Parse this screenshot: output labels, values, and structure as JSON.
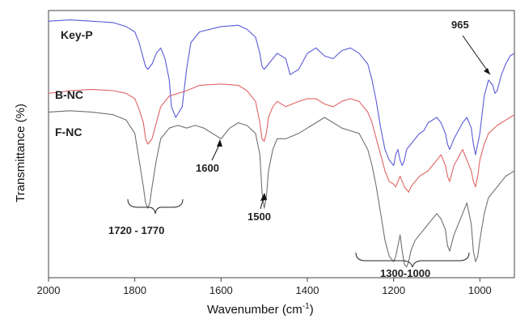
{
  "chart_data": {
    "type": "line",
    "xlabel": "Wavenumber (cm",
    "xlabel_sup": "-1",
    "xlabel_close": ")",
    "ylabel": "Transmittance (%)",
    "xlim": [
      2000,
      920
    ],
    "ylim": [
      0,
      100
    ],
    "xticks": [
      2000,
      1800,
      1600,
      1400,
      1200,
      1000
    ],
    "grid": false,
    "series": [
      {
        "name": "Key-P",
        "color": "#5a5ad8",
        "x": [
          2000,
          1950,
          1900,
          1850,
          1820,
          1800,
          1790,
          1780,
          1775,
          1770,
          1760,
          1750,
          1740,
          1730,
          1720,
          1715,
          1705,
          1690,
          1680,
          1670,
          1650,
          1600,
          1560,
          1540,
          1520,
          1510,
          1505,
          1500,
          1490,
          1470,
          1450,
          1440,
          1420,
          1400,
          1380,
          1360,
          1340,
          1320,
          1300,
          1280,
          1260,
          1250,
          1240,
          1230,
          1220,
          1210,
          1200,
          1195,
          1190,
          1185,
          1180,
          1175,
          1170,
          1160,
          1150,
          1140,
          1130,
          1120,
          1100,
          1090,
          1080,
          1075,
          1070,
          1060,
          1040,
          1030,
          1020,
          1015,
          1010,
          1000,
          990,
          980,
          970,
          965,
          960,
          950,
          940,
          930,
          920
        ],
        "values": [
          96,
          96.5,
          96,
          95.5,
          94,
          92,
          88,
          82,
          79,
          78,
          80,
          84,
          86,
          82,
          74,
          64,
          60,
          64,
          78,
          88,
          92,
          94,
          94.5,
          93,
          90,
          84,
          79,
          78,
          80,
          84,
          82,
          76,
          78,
          84,
          86,
          83,
          82,
          85,
          86,
          84,
          80,
          74,
          66,
          56,
          48,
          44,
          42,
          46,
          48,
          44,
          42,
          44,
          48,
          50,
          52,
          54,
          55,
          58,
          60,
          58,
          54,
          50,
          48,
          52,
          58,
          60,
          56,
          50,
          46,
          54,
          68,
          74,
          72,
          69,
          70,
          76,
          80,
          83,
          84
        ]
      },
      {
        "name": "B-NC",
        "color": "#e06464",
        "x": [
          2000,
          1950,
          1900,
          1850,
          1820,
          1800,
          1790,
          1780,
          1775,
          1770,
          1760,
          1750,
          1740,
          1720,
          1700,
          1680,
          1650,
          1600,
          1560,
          1540,
          1520,
          1510,
          1505,
          1500,
          1495,
          1490,
          1480,
          1470,
          1450,
          1420,
          1400,
          1380,
          1360,
          1340,
          1320,
          1300,
          1280,
          1260,
          1250,
          1240,
          1230,
          1220,
          1210,
          1200,
          1195,
          1190,
          1185,
          1180,
          1175,
          1170,
          1165,
          1160,
          1150,
          1140,
          1120,
          1100,
          1090,
          1080,
          1075,
          1070,
          1060,
          1040,
          1030,
          1020,
          1015,
          1010,
          1005,
          1000,
          990,
          980,
          960,
          950,
          940,
          930,
          920
        ],
        "values": [
          69,
          70,
          70.5,
          70,
          69,
          67,
          63,
          58,
          52,
          50,
          52,
          58,
          64,
          68,
          69,
          70,
          72,
          72.5,
          72,
          70,
          66,
          58,
          52,
          51,
          54,
          60,
          64,
          66,
          64,
          66,
          67,
          67,
          65,
          64,
          66,
          67,
          66,
          62,
          58,
          52,
          46,
          40,
          36,
          35,
          34,
          36,
          38,
          36,
          34,
          33,
          32,
          34,
          36,
          38,
          40,
          44,
          46,
          42,
          38,
          36,
          42,
          48,
          44,
          40,
          36,
          34,
          38,
          44,
          50,
          54,
          57,
          58,
          59,
          60,
          61
        ]
      },
      {
        "name": "F-NC",
        "color": "#707070",
        "x": [
          2000,
          1950,
          1900,
          1850,
          1820,
          1800,
          1790,
          1780,
          1775,
          1770,
          1765,
          1760,
          1750,
          1740,
          1720,
          1700,
          1680,
          1660,
          1640,
          1620,
          1600,
          1580,
          1560,
          1540,
          1520,
          1510,
          1505,
          1500,
          1495,
          1490,
          1480,
          1470,
          1450,
          1420,
          1400,
          1380,
          1360,
          1340,
          1320,
          1300,
          1280,
          1260,
          1250,
          1240,
          1230,
          1220,
          1210,
          1200,
          1195,
          1190,
          1185,
          1180,
          1175,
          1170,
          1165,
          1160,
          1150,
          1140,
          1120,
          1100,
          1090,
          1080,
          1075,
          1070,
          1060,
          1040,
          1030,
          1020,
          1015,
          1010,
          1005,
          1000,
          990,
          980,
          960,
          950,
          940,
          930,
          920
        ],
        "values": [
          62,
          62.5,
          62,
          61,
          59,
          54,
          44,
          34,
          28,
          26,
          28,
          34,
          44,
          52,
          56,
          57,
          56,
          57,
          56,
          54,
          52,
          56,
          58,
          57,
          54,
          46,
          32,
          26,
          30,
          40,
          48,
          52,
          52,
          54,
          56,
          58,
          60,
          58,
          56,
          55,
          54,
          48,
          42,
          34,
          24,
          14,
          8,
          6,
          8,
          12,
          16,
          10,
          5,
          4,
          6,
          10,
          14,
          16,
          20,
          24,
          22,
          18,
          12,
          10,
          16,
          24,
          28,
          20,
          10,
          6,
          8,
          14,
          24,
          30,
          34,
          36,
          38,
          39,
          40
        ]
      }
    ],
    "series_labels": [
      "Key-P",
      "B-NC",
      "F-NC"
    ],
    "annotations": [
      "965",
      "1600",
      "1500",
      "1720 - 1770",
      "1300-1000"
    ]
  }
}
